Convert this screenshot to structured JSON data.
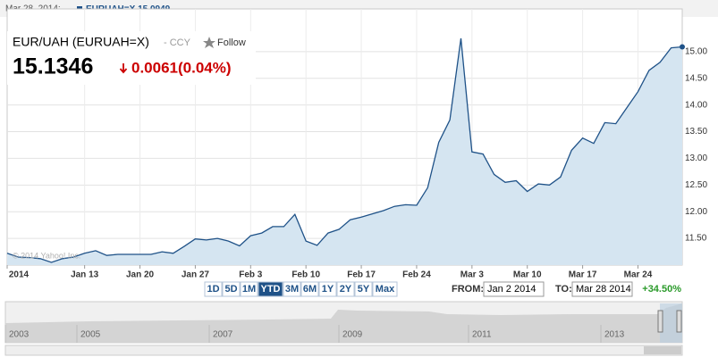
{
  "chart_data": {
    "type": "line",
    "legend_date": "Mar 28, 2014:",
    "legend_value": 15.0949,
    "watermark": "© 2014 Yahoo! Inc.",
    "categories": [
      "2014",
      null,
      null,
      null,
      null,
      null,
      null,
      "Jan 13",
      null,
      null,
      null,
      null,
      "Jan 20",
      null,
      null,
      null,
      null,
      "Jan 27",
      null,
      null,
      null,
      null,
      "Feb 3",
      null,
      null,
      null,
      null,
      "Feb 10",
      null,
      null,
      null,
      null,
      "Feb 17",
      null,
      null,
      null,
      null,
      "Feb 24",
      null,
      null,
      null,
      null,
      "Mar 3",
      null,
      null,
      null,
      null,
      "Mar 10",
      null,
      null,
      null,
      null,
      "Mar 17",
      null,
      null,
      null,
      null,
      "Mar 24",
      null,
      null,
      null,
      null
    ],
    "series": [
      {
        "name": "EURUAH=X",
        "color": "#1f5288",
        "values": [
          11.22,
          11.15,
          11.14,
          11.12,
          11.05,
          11.12,
          11.15,
          11.22,
          11.27,
          11.18,
          11.2,
          11.2,
          11.2,
          11.2,
          11.25,
          11.22,
          11.35,
          11.49,
          11.47,
          11.5,
          11.45,
          11.36,
          11.55,
          11.6,
          11.72,
          11.72,
          11.95,
          11.45,
          11.37,
          11.6,
          11.67,
          11.85,
          11.9,
          11.96,
          12.02,
          12.1,
          12.13,
          12.12,
          12.45,
          13.3,
          13.72,
          15.25,
          13.12,
          13.08,
          12.7,
          12.55,
          12.58,
          12.38,
          12.52,
          12.5,
          12.65,
          13.15,
          13.38,
          13.28,
          13.67,
          13.65,
          13.95,
          14.25,
          14.65,
          14.8,
          15.07,
          15.09
        ]
      }
    ],
    "ylim": [
      11.0,
      15.8
    ],
    "yticks": [
      {
        "value": 11.5,
        "label": "11.50"
      },
      {
        "value": 12,
        "label": "12.00"
      },
      {
        "value": 12.5,
        "label": "12.50"
      },
      {
        "value": 13,
        "label": "13.00"
      },
      {
        "value": 13.5,
        "label": "13.50"
      },
      {
        "value": 14,
        "label": "14.00"
      },
      {
        "value": 14.5,
        "label": "14.50"
      },
      {
        "value": 15,
        "label": "15.00"
      }
    ],
    "grid": true,
    "area_color": "#d5e5f1"
  },
  "header": {
    "name": "EUR/UAH (EURUAH=X)",
    "currency": "- CCY",
    "follow": "Follow",
    "price": 15.1346,
    "change": "0.0061(0.04%)"
  },
  "controls": {
    "ranges": [
      "1D",
      "5D",
      "1M",
      "YTD",
      "3M",
      "6M",
      "1Y",
      "2Y",
      "5Y",
      "Max"
    ],
    "selected_range": "YTD",
    "from_label": "FROM:",
    "from": "Jan 2 2014",
    "to_label": "TO:",
    "to": "Mar 28 2014",
    "period_change": "+34.50%"
  },
  "navigator": {
    "years": [
      "2003",
      "2005",
      "2007",
      "2009",
      "2011",
      "2013"
    ]
  }
}
